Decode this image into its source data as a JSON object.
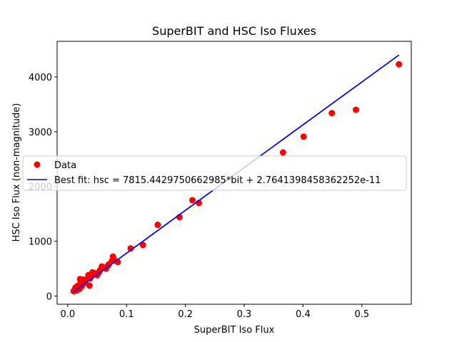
{
  "chart_data": {
    "type": "scatter",
    "title": "SuperBIT and HSC Iso Fluxes",
    "xlabel": "SuperBIT Iso Flux",
    "ylabel": "HSC Iso Flux (non-magnitude)",
    "xlim": [
      -0.018,
      0.584
    ],
    "ylim": [
      -150,
      4650
    ],
    "xticks": [
      0.0,
      0.1,
      0.2,
      0.3,
      0.4,
      0.5
    ],
    "xtick_labels": [
      "0.0",
      "0.1",
      "0.2",
      "0.3",
      "0.4",
      "0.5"
    ],
    "yticks": [
      0,
      1000,
      2000,
      3000,
      4000
    ],
    "ytick_labels": [
      "0",
      "1000",
      "2000",
      "3000",
      "4000"
    ],
    "grid": false,
    "legend_placement": "center-left",
    "legend": [
      {
        "label": "Data",
        "marker": "point",
        "color": "#ff0000"
      },
      {
        "label": "Best fit: hsc = 7815.442975066298​5*bit + 2.7641398458362252e-11",
        "marker": "line",
        "color": "#0000ff"
      }
    ],
    "series": [
      {
        "name": "Data",
        "kind": "scatter",
        "color": "#ff0000",
        "x": [
          0.01,
          0.012,
          0.013,
          0.015,
          0.016,
          0.018,
          0.02,
          0.021,
          0.022,
          0.024,
          0.025,
          0.026,
          0.028,
          0.03,
          0.032,
          0.035,
          0.037,
          0.038,
          0.04,
          0.042,
          0.045,
          0.048,
          0.05,
          0.053,
          0.055,
          0.058,
          0.06,
          0.065,
          0.068,
          0.07,
          0.075,
          0.077,
          0.08,
          0.085,
          0.107,
          0.128,
          0.153,
          0.19,
          0.212,
          0.223,
          0.366,
          0.401,
          0.449,
          0.49,
          0.563,
          0.02,
          0.015,
          0.022,
          0.038,
          0.028
        ],
        "y": [
          90,
          110,
          150,
          120,
          180,
          140,
          200,
          310,
          160,
          180,
          220,
          300,
          240,
          260,
          300,
          380,
          190,
          320,
          360,
          430,
          420,
          400,
          380,
          430,
          470,
          540,
          520,
          500,
          550,
          580,
          640,
          720,
          650,
          620,
          870,
          930,
          1300,
          1440,
          1750,
          1700,
          2620,
          2910,
          3340,
          3400,
          4230,
          130,
          100,
          250,
          350,
          280
        ]
      },
      {
        "name": "Best fit: hsc = 7815.4429750662985*bit + 2.7641398458362252e-11",
        "kind": "line",
        "color": "#0000ff",
        "x": [
          0.01,
          0.563
        ],
        "y": [
          78.15,
          4400.1
        ]
      }
    ]
  }
}
